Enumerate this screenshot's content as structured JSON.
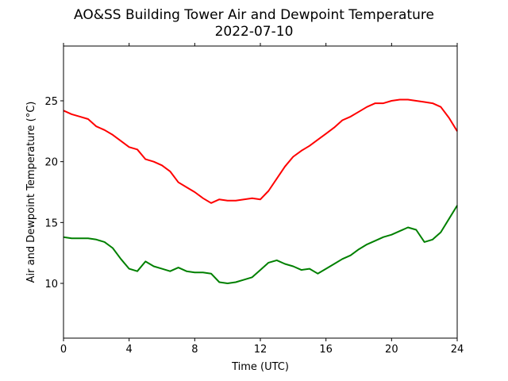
{
  "chart_data": {
    "type": "line",
    "title": "AO&SS Building Tower Air and Dewpoint Temperature",
    "subtitle": "2022-07-10",
    "xlabel": "Time (UTC)",
    "ylabel": "Air and Dewpoint Temperature (°C)",
    "xlim": [
      0,
      24
    ],
    "ylim": [
      5.5,
      29.5
    ],
    "xticks": [
      0,
      4,
      8,
      12,
      16,
      20,
      24
    ],
    "yticks": [
      10,
      15,
      20,
      25
    ],
    "grid": false,
    "series": [
      {
        "color": "#ff0000",
        "x": [
          0,
          0.5,
          1,
          1.5,
          2,
          2.5,
          3,
          3.5,
          4,
          4.5,
          5,
          5.5,
          6,
          6.5,
          7,
          7.5,
          8,
          8.5,
          9,
          9.5,
          10,
          10.5,
          11,
          11.5,
          12,
          12.5,
          13,
          13.5,
          14,
          14.5,
          15,
          15.5,
          16,
          16.5,
          17,
          17.5,
          18,
          18.5,
          19,
          19.5,
          20,
          20.5,
          21,
          21.5,
          22,
          22.5,
          23,
          23.5,
          24
        ],
        "y": [
          24.2,
          23.9,
          23.7,
          23.5,
          22.9,
          22.6,
          22.2,
          21.7,
          21.2,
          21.0,
          20.2,
          20.0,
          19.7,
          19.2,
          18.3,
          17.9,
          17.5,
          17.0,
          16.6,
          16.9,
          16.8,
          16.8,
          16.9,
          17.0,
          16.9,
          17.6,
          18.6,
          19.6,
          20.4,
          20.9,
          21.3,
          21.8,
          22.3,
          22.8,
          23.4,
          23.7,
          24.1,
          24.5,
          24.8,
          24.8,
          25.0,
          25.1,
          25.1,
          25.0,
          24.9,
          24.8,
          24.5,
          23.6,
          22.5
        ]
      },
      {
        "color": "#008000",
        "x": [
          0,
          0.5,
          1,
          1.5,
          2,
          2.5,
          3,
          3.5,
          4,
          4.5,
          5,
          5.5,
          6,
          6.5,
          7,
          7.5,
          8,
          8.5,
          9,
          9.5,
          10,
          10.5,
          11,
          11.5,
          12,
          12.5,
          13,
          13.5,
          14,
          14.5,
          15,
          15.5,
          16,
          16.5,
          17,
          17.5,
          18,
          18.5,
          19,
          19.5,
          20,
          20.5,
          21,
          21.5,
          22,
          22.5,
          23,
          23.5,
          24
        ],
        "y": [
          13.8,
          13.7,
          13.7,
          13.7,
          13.6,
          13.4,
          12.9,
          12.0,
          11.2,
          11.0,
          11.8,
          11.4,
          11.2,
          11.0,
          11.3,
          11.0,
          10.9,
          10.9,
          10.8,
          10.1,
          10.0,
          10.1,
          10.3,
          10.5,
          11.1,
          11.7,
          11.9,
          11.6,
          11.4,
          11.1,
          11.2,
          10.8,
          11.2,
          11.6,
          12.0,
          12.3,
          12.8,
          13.2,
          13.5,
          13.8,
          14.0,
          14.3,
          14.6,
          14.4,
          13.4,
          13.6,
          14.2,
          15.3,
          16.4
        ]
      }
    ]
  }
}
